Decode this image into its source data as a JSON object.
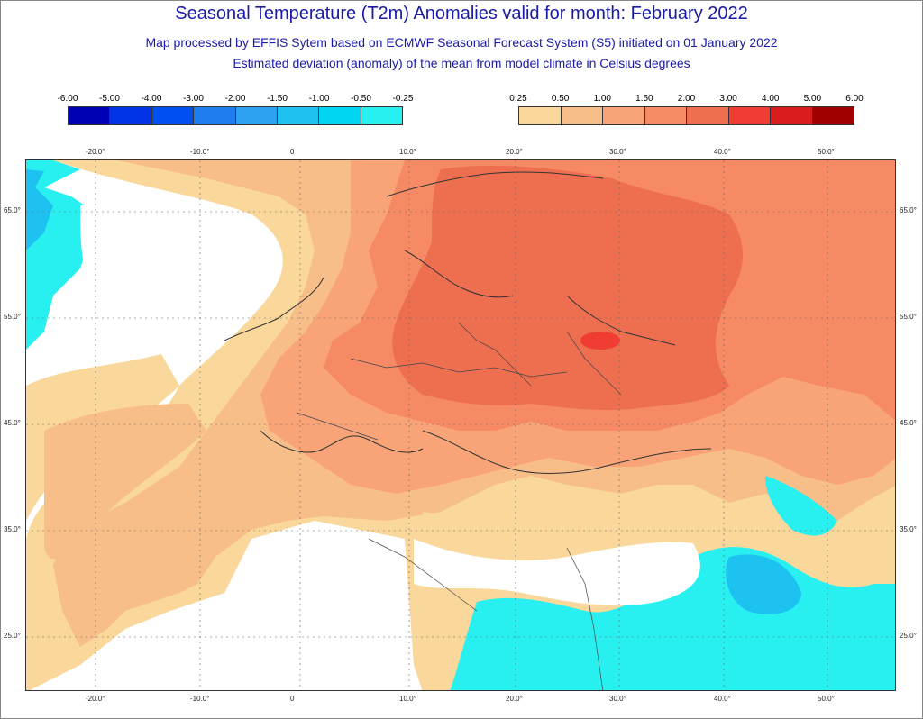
{
  "header": {
    "title": "Seasonal Temperature (T2m) Anomalies valid for month: February 2022",
    "subtitle1": "Map processed by EFFIS Sytem based on ECMWF Seasonal Forecast System (S5) initiated on 01 January 2022",
    "subtitle2": "Estimated deviation (anomaly) of the mean from model climate in Celsius degrees"
  },
  "legend_cold": {
    "labels": [
      "-6.00",
      "-5.00",
      "-4.00",
      "-3.00",
      "-2.00",
      "-1.50",
      "-1.00",
      "-0.50",
      "-0.25"
    ],
    "colors": [
      "#0000b4",
      "#0032e6",
      "#0050f0",
      "#1e7ef0",
      "#2ca2f0",
      "#1ec2f0",
      "#00d6f0",
      "#28f0f0"
    ]
  },
  "legend_warm": {
    "labels": [
      "0.25",
      "0.50",
      "1.00",
      "1.50",
      "2.00",
      "3.00",
      "4.00",
      "5.00",
      "6.00"
    ],
    "colors": [
      "#fad79b",
      "#f8be8a",
      "#f8a478",
      "#f58a64",
      "#ee6e50",
      "#f03c32",
      "#d81e1e",
      "#a00000"
    ]
  },
  "map": {
    "lon_ticks": [
      "-20.0°",
      "-10.0°",
      "0",
      "10.0°",
      "20.0°",
      "30.0°",
      "40.0°",
      "50.0°"
    ],
    "lat_ticks": [
      "65.0°",
      "55.0°",
      "45.0°",
      "35.0°",
      "25.0°"
    ],
    "colors": {
      "ocean_neutral": "#ffffff",
      "light_warm": "#fad79b",
      "warm_1": "#f8be8a",
      "warm_2": "#f8a478",
      "warm_3": "#f58a64",
      "warm_4": "#ee6e50",
      "cold_1": "#28f0f0",
      "cold_2": "#00d6f0",
      "cold_3": "#1ec2f0"
    }
  }
}
